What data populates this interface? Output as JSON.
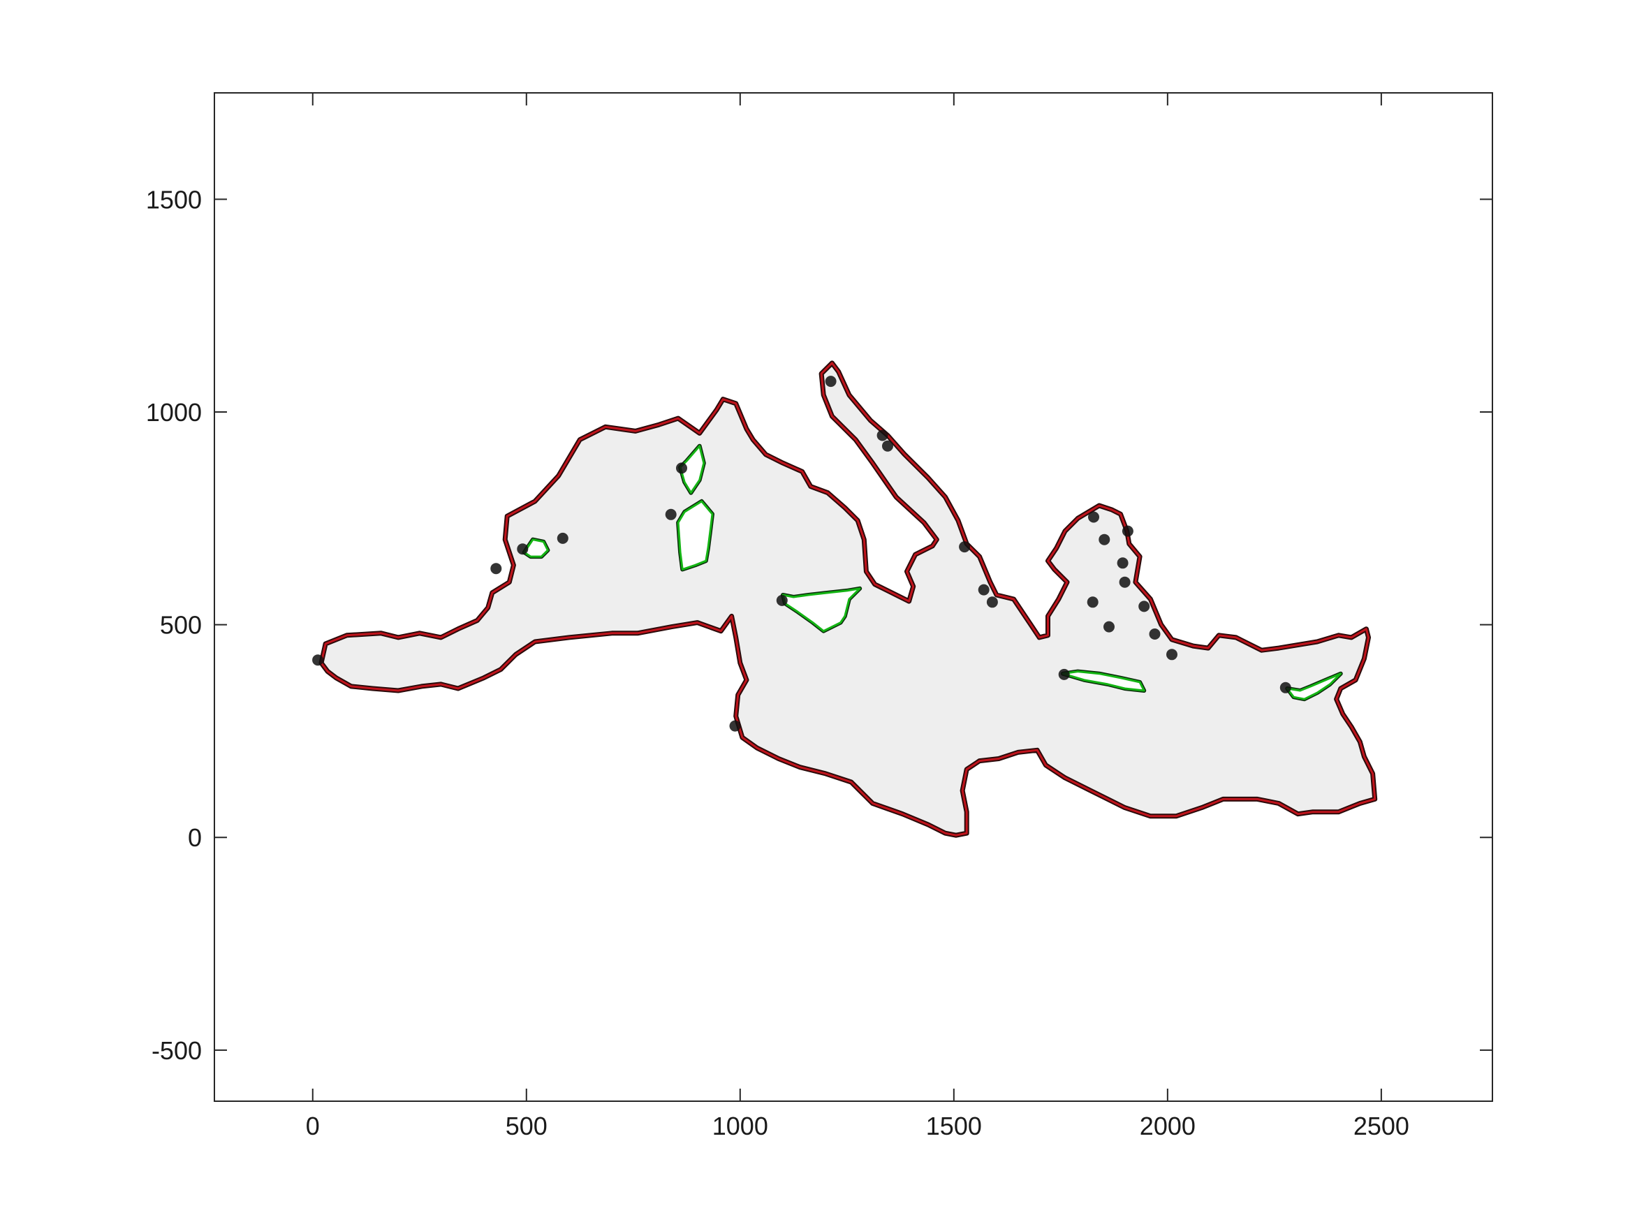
{
  "chart_data": {
    "type": "map-outline",
    "title": "",
    "xlabel": "",
    "ylabel": "",
    "xlim": [
      -230,
      2760
    ],
    "ylim": [
      -620,
      1750
    ],
    "grid": false,
    "x_ticks": [
      "0",
      "500",
      "1000",
      "1500",
      "2000",
      "2500"
    ],
    "y_ticks": [
      "-500",
      "0",
      "500",
      "1000",
      "1500"
    ],
    "x_tick_values": [
      0,
      500,
      1000,
      1500,
      2000,
      2500
    ],
    "y_tick_values": [
      -500,
      0,
      500,
      1000,
      1500
    ],
    "colors": {
      "sea_fill": "#eeeeee",
      "coast_outline": "#c0141c",
      "island_outline": "#14b414",
      "marker": "#111111"
    },
    "series": [
      {
        "kind": "coastline",
        "points": [
          [
            20,
            410
          ],
          [
            30,
            455
          ],
          [
            80,
            475
          ],
          [
            160,
            480
          ],
          [
            200,
            470
          ],
          [
            250,
            480
          ],
          [
            300,
            470
          ],
          [
            340,
            490
          ],
          [
            385,
            510
          ],
          [
            410,
            540
          ],
          [
            420,
            575
          ],
          [
            460,
            600
          ],
          [
            470,
            640
          ],
          [
            450,
            700
          ],
          [
            455,
            755
          ],
          [
            520,
            790
          ],
          [
            575,
            850
          ],
          [
            625,
            935
          ],
          [
            685,
            965
          ],
          [
            755,
            955
          ],
          [
            810,
            970
          ],
          [
            855,
            985
          ],
          [
            905,
            950
          ],
          [
            945,
            1005
          ],
          [
            960,
            1030
          ],
          [
            990,
            1020
          ],
          [
            1015,
            960
          ],
          [
            1030,
            935
          ],
          [
            1060,
            900
          ],
          [
            1100,
            880
          ],
          [
            1145,
            860
          ],
          [
            1165,
            825
          ],
          [
            1205,
            810
          ],
          [
            1245,
            775
          ],
          [
            1275,
            745
          ],
          [
            1290,
            700
          ],
          [
            1295,
            625
          ],
          [
            1315,
            595
          ],
          [
            1375,
            565
          ],
          [
            1395,
            555
          ],
          [
            1405,
            590
          ],
          [
            1390,
            625
          ],
          [
            1410,
            665
          ],
          [
            1450,
            685
          ],
          [
            1460,
            700
          ],
          [
            1430,
            740
          ],
          [
            1365,
            800
          ],
          [
            1310,
            880
          ],
          [
            1270,
            935
          ],
          [
            1240,
            965
          ],
          [
            1215,
            990
          ],
          [
            1195,
            1040
          ],
          [
            1190,
            1090
          ],
          [
            1215,
            1115
          ],
          [
            1230,
            1095
          ],
          [
            1255,
            1040
          ],
          [
            1305,
            980
          ],
          [
            1345,
            945
          ],
          [
            1385,
            900
          ],
          [
            1440,
            845
          ],
          [
            1480,
            800
          ],
          [
            1510,
            745
          ],
          [
            1530,
            690
          ],
          [
            1560,
            660
          ],
          [
            1585,
            600
          ],
          [
            1600,
            570
          ],
          [
            1640,
            560
          ],
          [
            1680,
            500
          ],
          [
            1700,
            470
          ],
          [
            1720,
            475
          ],
          [
            1720,
            520
          ],
          [
            1745,
            560
          ],
          [
            1765,
            600
          ],
          [
            1735,
            630
          ],
          [
            1720,
            650
          ],
          [
            1740,
            680
          ],
          [
            1760,
            720
          ],
          [
            1790,
            750
          ],
          [
            1840,
            780
          ],
          [
            1870,
            770
          ],
          [
            1890,
            760
          ],
          [
            1905,
            720
          ],
          [
            1910,
            690
          ],
          [
            1935,
            660
          ],
          [
            1925,
            600
          ],
          [
            1960,
            560
          ],
          [
            1985,
            500
          ],
          [
            2010,
            465
          ],
          [
            2060,
            450
          ],
          [
            2095,
            445
          ],
          [
            2120,
            475
          ],
          [
            2160,
            470
          ],
          [
            2220,
            440
          ],
          [
            2260,
            445
          ],
          [
            2350,
            460
          ],
          [
            2400,
            475
          ],
          [
            2430,
            470
          ],
          [
            2465,
            490
          ],
          [
            2470,
            470
          ],
          [
            2460,
            420
          ],
          [
            2440,
            370
          ],
          [
            2405,
            350
          ],
          [
            2395,
            325
          ],
          [
            2410,
            290
          ],
          [
            2430,
            260
          ],
          [
            2450,
            225
          ],
          [
            2460,
            190
          ],
          [
            2480,
            150
          ],
          [
            2485,
            90
          ],
          [
            2450,
            80
          ],
          [
            2400,
            60
          ],
          [
            2340,
            60
          ],
          [
            2305,
            55
          ],
          [
            2260,
            80
          ],
          [
            2210,
            90
          ],
          [
            2130,
            90
          ],
          [
            2080,
            70
          ],
          [
            2020,
            50
          ],
          [
            1960,
            50
          ],
          [
            1900,
            70
          ],
          [
            1820,
            110
          ],
          [
            1760,
            140
          ],
          [
            1715,
            170
          ],
          [
            1695,
            205
          ],
          [
            1650,
            200
          ],
          [
            1605,
            185
          ],
          [
            1560,
            180
          ],
          [
            1530,
            160
          ],
          [
            1520,
            110
          ],
          [
            1530,
            60
          ],
          [
            1530,
            10
          ],
          [
            1505,
            5
          ],
          [
            1480,
            10
          ],
          [
            1440,
            30
          ],
          [
            1380,
            55
          ],
          [
            1310,
            80
          ],
          [
            1260,
            130
          ],
          [
            1200,
            150
          ],
          [
            1140,
            165
          ],
          [
            1090,
            185
          ],
          [
            1040,
            210
          ],
          [
            1005,
            235
          ],
          [
            990,
            285
          ],
          [
            995,
            335
          ],
          [
            1015,
            370
          ],
          [
            1000,
            410
          ],
          [
            990,
            470
          ],
          [
            980,
            520
          ],
          [
            955,
            485
          ],
          [
            900,
            505
          ],
          [
            840,
            495
          ],
          [
            760,
            480
          ],
          [
            700,
            480
          ],
          [
            600,
            470
          ],
          [
            520,
            460
          ],
          [
            475,
            430
          ],
          [
            440,
            395
          ],
          [
            400,
            375
          ],
          [
            340,
            350
          ],
          [
            300,
            360
          ],
          [
            255,
            355
          ],
          [
            200,
            345
          ],
          [
            140,
            350
          ],
          [
            90,
            355
          ],
          [
            55,
            375
          ],
          [
            35,
            390
          ],
          [
            20,
            410
          ]
        ]
      },
      {
        "kind": "island",
        "name_hidden": true,
        "points": [
          [
            495,
            670
          ],
          [
            515,
            700
          ],
          [
            540,
            695
          ],
          [
            550,
            675
          ],
          [
            535,
            660
          ],
          [
            510,
            660
          ],
          [
            495,
            670
          ]
        ]
      },
      {
        "kind": "island",
        "name_hidden": true,
        "points": [
          [
            875,
            885
          ],
          [
            905,
            920
          ],
          [
            915,
            880
          ],
          [
            905,
            840
          ],
          [
            885,
            810
          ],
          [
            870,
            835
          ],
          [
            860,
            870
          ],
          [
            875,
            885
          ]
        ]
      },
      {
        "kind": "island",
        "name_hidden": true,
        "points": [
          [
            855,
            740
          ],
          [
            870,
            765
          ],
          [
            910,
            790
          ],
          [
            935,
            760
          ],
          [
            930,
            720
          ],
          [
            925,
            680
          ],
          [
            920,
            650
          ],
          [
            895,
            640
          ],
          [
            865,
            630
          ],
          [
            860,
            670
          ],
          [
            855,
            740
          ]
        ]
      },
      {
        "kind": "island",
        "name_hidden": true,
        "points": [
          [
            1100,
            570
          ],
          [
            1125,
            565
          ],
          [
            1160,
            570
          ],
          [
            1205,
            575
          ],
          [
            1250,
            580
          ],
          [
            1280,
            585
          ],
          [
            1255,
            560
          ],
          [
            1245,
            520
          ],
          [
            1235,
            505
          ],
          [
            1195,
            485
          ],
          [
            1170,
            505
          ],
          [
            1135,
            530
          ],
          [
            1105,
            550
          ],
          [
            1100,
            570
          ]
        ]
      },
      {
        "kind": "island",
        "name_hidden": true,
        "points": [
          [
            1755,
            385
          ],
          [
            1805,
            370
          ],
          [
            1860,
            360
          ],
          [
            1900,
            350
          ],
          [
            1945,
            345
          ],
          [
            1935,
            365
          ],
          [
            1890,
            375
          ],
          [
            1840,
            385
          ],
          [
            1790,
            390
          ],
          [
            1755,
            385
          ]
        ]
      },
      {
        "kind": "island",
        "name_hidden": true,
        "points": [
          [
            2280,
            350
          ],
          [
            2310,
            345
          ],
          [
            2335,
            355
          ],
          [
            2370,
            370
          ],
          [
            2405,
            385
          ],
          [
            2380,
            360
          ],
          [
            2350,
            340
          ],
          [
            2320,
            325
          ],
          [
            2295,
            330
          ],
          [
            2280,
            350
          ]
        ]
      }
    ],
    "markers": [
      [
        12,
        417
      ],
      [
        429,
        632
      ],
      [
        491,
        678
      ],
      [
        585,
        703
      ],
      [
        838,
        759
      ],
      [
        863,
        868
      ],
      [
        1098,
        557
      ],
      [
        988,
        262
      ],
      [
        1212,
        1072
      ],
      [
        1333,
        945
      ],
      [
        1345,
        920
      ],
      [
        1525,
        683
      ],
      [
        1570,
        582
      ],
      [
        1590,
        553
      ],
      [
        1758,
        383
      ],
      [
        1825,
        553
      ],
      [
        1827,
        753
      ],
      [
        1852,
        700
      ],
      [
        1863,
        495
      ],
      [
        1895,
        645
      ],
      [
        1900,
        600
      ],
      [
        1907,
        720
      ],
      [
        1945,
        543
      ],
      [
        1970,
        478
      ],
      [
        2010,
        430
      ],
      [
        2276,
        352
      ]
    ]
  }
}
